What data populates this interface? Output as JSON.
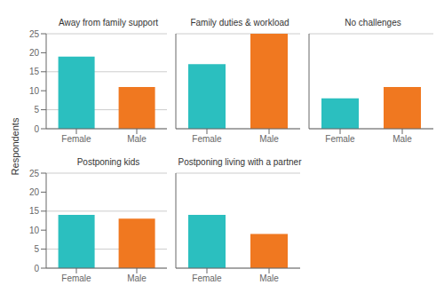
{
  "chart_data": [
    {
      "type": "bar",
      "title": "Away from family support",
      "ylabel": "Respondents",
      "categories": [
        "Female",
        "Male"
      ],
      "values": [
        19,
        11
      ],
      "colors": [
        "#2bbfbf",
        "#f07820"
      ],
      "ylim": [
        0,
        25
      ],
      "yticks": [
        0,
        5,
        10,
        15,
        20,
        25
      ],
      "grid": true
    },
    {
      "type": "bar",
      "title": "Family duties & workload",
      "categories": [
        "Female",
        "Male"
      ],
      "values": [
        17,
        25
      ],
      "colors": [
        "#2bbfbf",
        "#f07820"
      ],
      "ylim": [
        0,
        25
      ],
      "yticks": [
        0,
        5,
        10,
        15,
        20,
        25
      ],
      "grid": true,
      "tick_labels": "x"
    },
    {
      "type": "bar",
      "title": "No challenges",
      "categories": [
        "Female",
        "Male"
      ],
      "values": [
        8,
        11
      ],
      "colors": [
        "#2bbfbf",
        "#f07820"
      ],
      "ylim": [
        0,
        25
      ],
      "yticks": [
        0,
        5,
        10,
        15,
        20,
        25
      ],
      "grid": true,
      "tick_labels": "x"
    },
    {
      "type": "bar",
      "title": "Postponing kids",
      "categories": [
        "Female",
        "Male"
      ],
      "values": [
        14,
        13
      ],
      "colors": [
        "#2bbfbf",
        "#f07820"
      ],
      "ylim": [
        0,
        25
      ],
      "yticks": [
        0,
        5,
        10,
        15,
        20,
        25
      ],
      "grid": true
    },
    {
      "type": "bar",
      "title": "Postponing living with a partner",
      "categories": [
        "Female",
        "Male"
      ],
      "values": [
        14,
        9
      ],
      "colors": [
        "#2bbfbf",
        "#f07820"
      ],
      "ylim": [
        0,
        25
      ],
      "yticks": [
        0,
        5,
        10,
        15,
        20,
        25
      ],
      "grid": true,
      "tick_labels": "x"
    }
  ]
}
